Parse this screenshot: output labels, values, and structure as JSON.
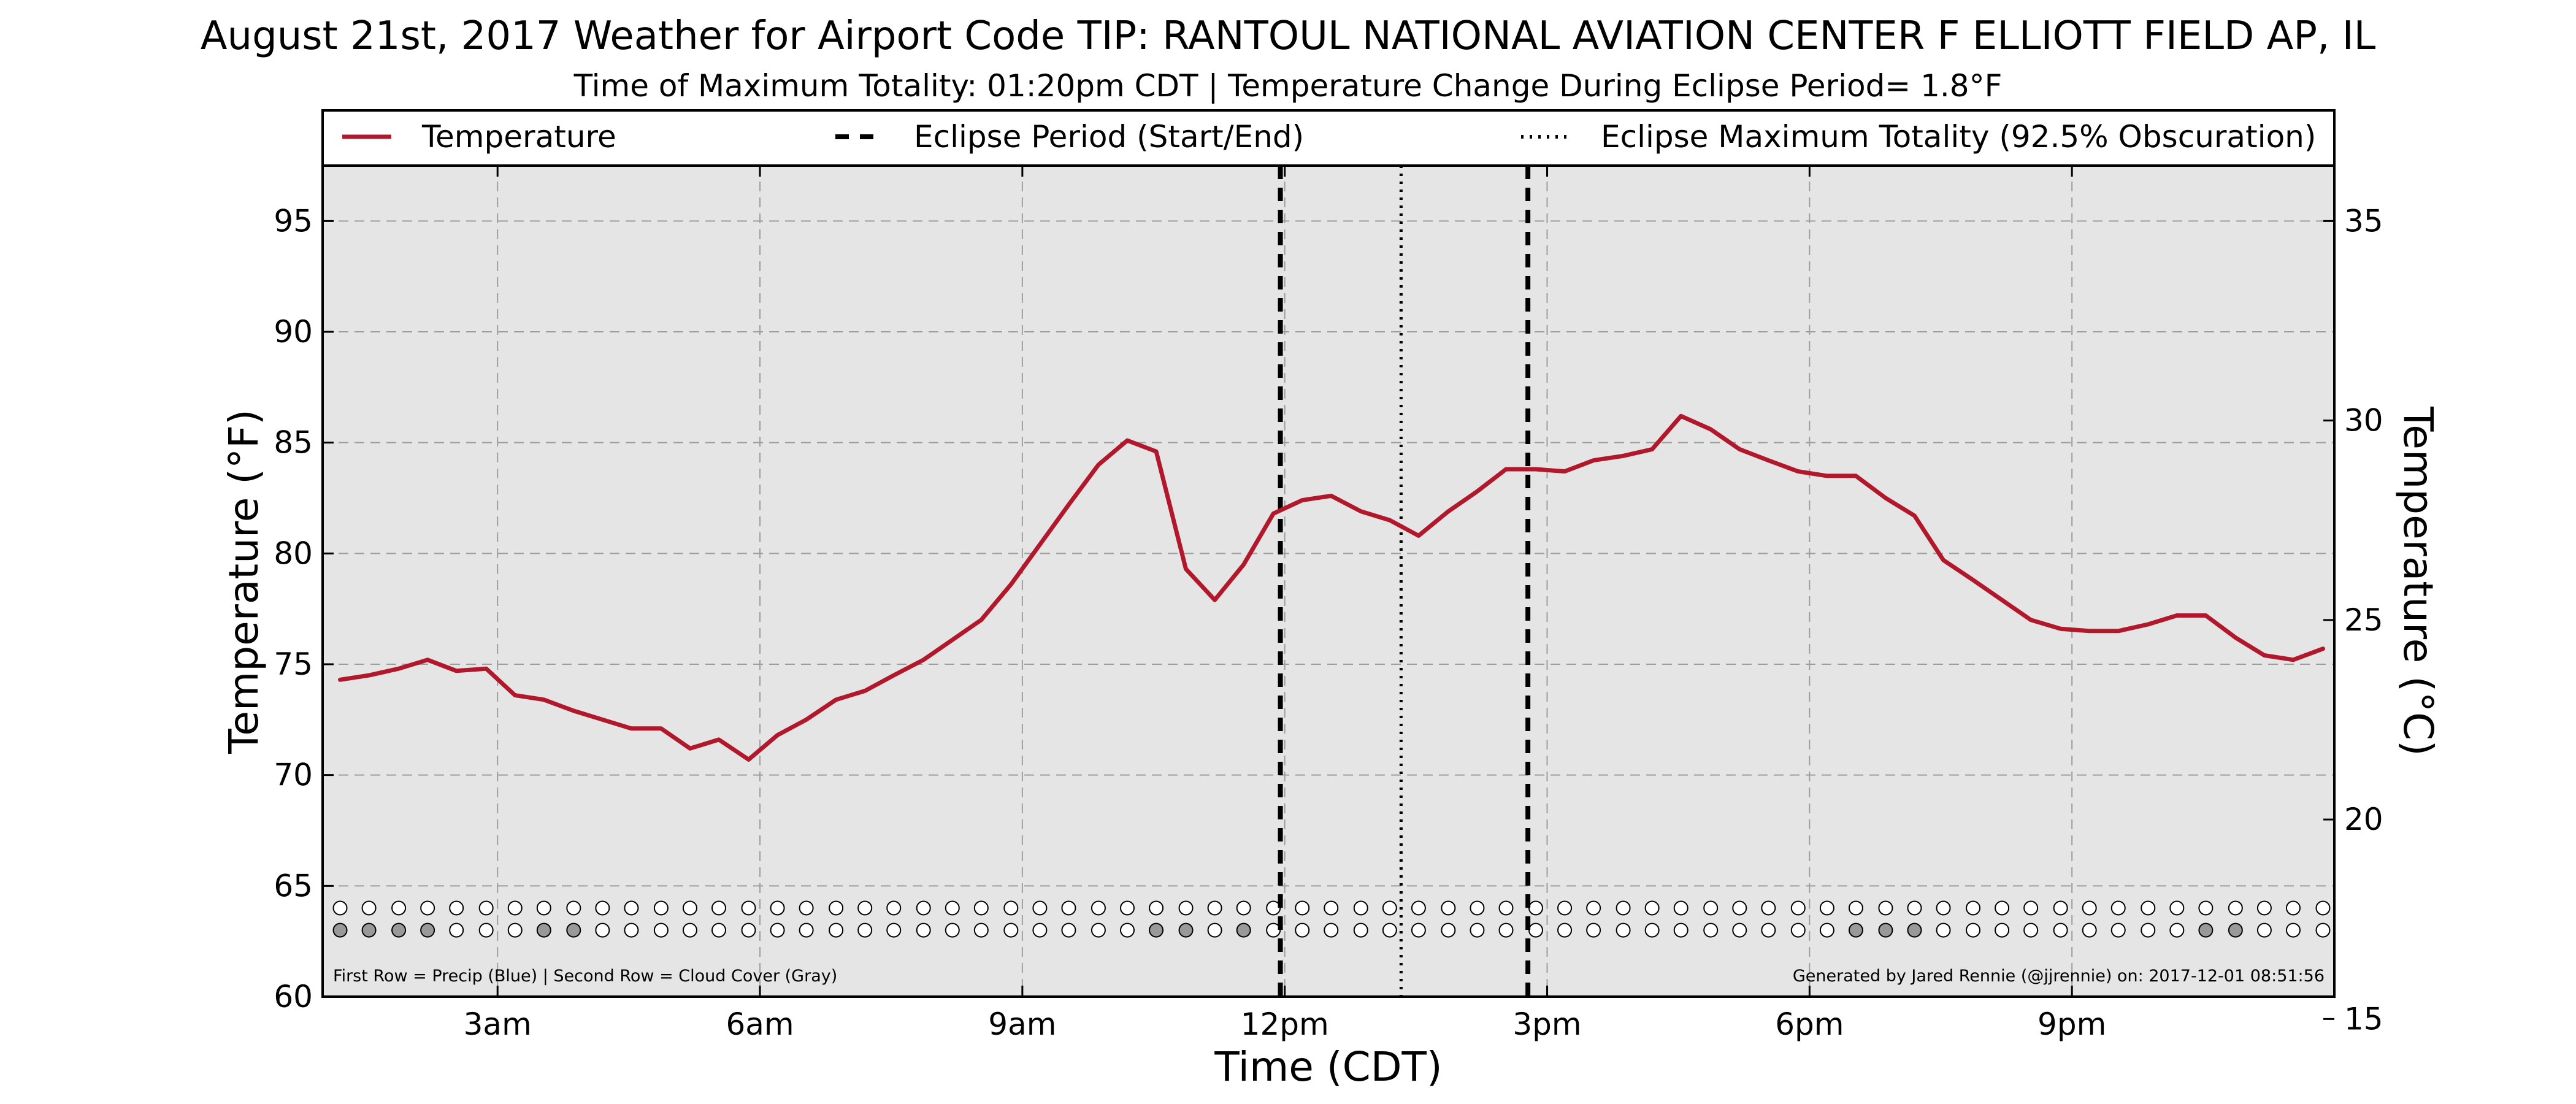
{
  "chart_data": {
    "type": "line",
    "title": "August 21st, 2017 Weather for Airport Code TIP: RANTOUL NATIONAL AVIATION CENTER F ELLIOTT FIELD AP, IL",
    "subtitle": "Time of Maximum Totality: 01:20pm CDT | Temperature Change During Eclipse Period= 1.8°F",
    "xlabel": "Time (CDT)",
    "ylabel": "Temperature (°F)",
    "y2label": "Temperature (°C)",
    "xlim": [
      1.0,
      24.0
    ],
    "ylim": [
      60,
      97.5
    ],
    "y2lim": [
      15.56,
      36.39
    ],
    "grid": true,
    "legend_position": "top",
    "x_ticks": [
      {
        "x": 3,
        "label": "3am"
      },
      {
        "x": 6,
        "label": "6am"
      },
      {
        "x": 9,
        "label": "9am"
      },
      {
        "x": 12,
        "label": "12pm"
      },
      {
        "x": 15,
        "label": "3pm"
      },
      {
        "x": 18,
        "label": "6pm"
      },
      {
        "x": 21,
        "label": "9pm"
      }
    ],
    "y_ticks": [
      60,
      65,
      70,
      75,
      80,
      85,
      90,
      95
    ],
    "y2_ticks": [
      15,
      20,
      25,
      30,
      35
    ],
    "legend": [
      {
        "label": "Temperature",
        "style": "solid"
      },
      {
        "label": "Eclipse Period (Start/End)",
        "style": "dashed"
      },
      {
        "label": "Eclipse Maximum Totality (92.5% Obscuration)",
        "style": "dotted"
      }
    ],
    "series": [
      {
        "name": "Temperature",
        "color": "#b2182b",
        "x": [
          1.2,
          1.53,
          1.87,
          2.2,
          2.53,
          2.87,
          3.2,
          3.53,
          3.87,
          4.2,
          4.53,
          4.87,
          5.2,
          5.53,
          5.87,
          6.2,
          6.53,
          6.87,
          7.2,
          7.53,
          7.87,
          8.2,
          8.53,
          8.87,
          9.2,
          9.53,
          9.87,
          10.2,
          10.53,
          10.87,
          11.2,
          11.53,
          11.87,
          12.2,
          12.53,
          12.87,
          13.2,
          13.53,
          13.87,
          14.2,
          14.53,
          14.87,
          15.2,
          15.53,
          15.87,
          16.2,
          16.53,
          16.87,
          17.2,
          17.53,
          17.87,
          18.2,
          18.53,
          18.87,
          19.2,
          19.53,
          19.87,
          20.2,
          20.53,
          20.87,
          21.2,
          21.53,
          21.87,
          22.2,
          22.53,
          22.87,
          23.2,
          23.53,
          23.87
        ],
        "values": [
          74.3,
          74.5,
          74.8,
          75.2,
          74.7,
          74.8,
          73.6,
          73.4,
          72.9,
          72.5,
          72.1,
          72.1,
          71.2,
          71.6,
          70.7,
          71.8,
          72.5,
          73.4,
          73.8,
          74.5,
          75.2,
          76.1,
          77.0,
          78.6,
          80.4,
          82.2,
          84.0,
          85.1,
          84.6,
          79.3,
          77.9,
          79.5,
          81.8,
          82.4,
          82.6,
          81.9,
          81.5,
          80.8,
          81.9,
          82.8,
          83.8,
          83.8,
          83.7,
          84.2,
          84.4,
          84.7,
          86.2,
          85.6,
          84.7,
          84.2,
          83.7,
          83.5,
          83.5,
          82.5,
          81.7,
          79.7,
          78.8,
          77.9,
          77.0,
          76.6,
          76.5,
          76.5,
          76.8,
          77.2,
          77.2,
          76.2,
          75.4,
          75.2,
          75.7
        ]
      }
    ],
    "eclipse_start": 11.95,
    "eclipse_end": 14.78,
    "eclipse_max": 13.33,
    "row_y": [
      64,
      63
    ],
    "precip_row": [
      "o",
      "o",
      "o",
      "o",
      "o",
      "o",
      "o",
      "o",
      "o",
      "o",
      "o",
      "o",
      "o",
      "o",
      "o",
      "o",
      "o",
      "o",
      "o",
      "o",
      "o",
      "o",
      "o",
      "o",
      "o",
      "o",
      "o",
      "o",
      "o",
      "o",
      "o",
      "o",
      "o",
      "o",
      "o",
      "o",
      "o",
      "o",
      "o",
      "o",
      "o",
      "o",
      "o",
      "o",
      "o",
      "o",
      "o",
      "o",
      "o",
      "o",
      "o",
      "o",
      "o",
      "o",
      "o",
      "o",
      "o",
      "o",
      "o",
      "o",
      "o",
      "o",
      "o",
      "o",
      "o",
      "o",
      "o",
      "o",
      "o"
    ],
    "cloud_row": [
      "g",
      "g",
      "g",
      "g",
      "o",
      "o",
      "o",
      "g",
      "g",
      "o",
      "o",
      "o",
      "o",
      "o",
      "o",
      "o",
      "o",
      "o",
      "o",
      "o",
      "o",
      "o",
      "o",
      "o",
      "o",
      "o",
      "o",
      "o",
      "g",
      "g",
      "o",
      "g",
      "o",
      "o",
      "o",
      "o",
      "o",
      "o",
      "o",
      "o",
      "o",
      "o",
      "o",
      "o",
      "o",
      "o",
      "o",
      "o",
      "o",
      "o",
      "o",
      "o",
      "g",
      "g",
      "g",
      "o",
      "o",
      "o",
      "o",
      "o",
      "o",
      "o",
      "o",
      "o",
      "g",
      "g",
      "o",
      "o",
      "o"
    ],
    "empty_color": "#ffffff",
    "cloud_color": "#999999",
    "footnote_left": "First Row = Precip (Blue) | Second Row = Cloud Cover (Gray)",
    "footnote_right": "Generated by Jared Rennie (@jjrennie) on: 2017-12-01 08:51:56"
  }
}
